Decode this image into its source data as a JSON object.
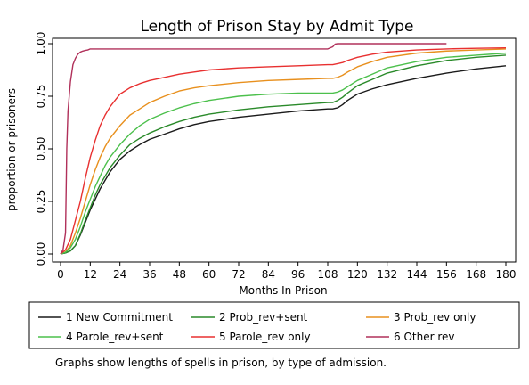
{
  "chart_data": {
    "type": "line",
    "title": "Length of Prison Stay by Admit Type",
    "xlabel": "Months In Prison",
    "ylabel": "proportion or prisoners",
    "xlim": [
      0,
      180
    ],
    "ylim": [
      0,
      1
    ],
    "xticks": [
      0,
      12,
      24,
      36,
      48,
      60,
      72,
      84,
      96,
      108,
      120,
      132,
      144,
      156,
      168,
      180
    ],
    "yticks": [
      "0.00",
      "0.25",
      "0.50",
      "0.75",
      "1.00"
    ],
    "grid": false,
    "legend_position": "bottom",
    "note": "Graphs show lengths of spells in prison, by type of admission.",
    "series": [
      {
        "name": "1 New Commitment",
        "color": "#1a1a1a",
        "x": [
          0,
          2,
          4,
          6,
          8,
          10,
          12,
          14,
          16,
          18,
          20,
          24,
          28,
          32,
          36,
          42,
          48,
          54,
          60,
          72,
          84,
          96,
          108,
          110,
          112,
          114,
          116,
          120,
          126,
          132,
          144,
          156,
          168,
          180
        ],
        "y": [
          0,
          0.005,
          0.015,
          0.04,
          0.09,
          0.15,
          0.21,
          0.26,
          0.31,
          0.35,
          0.39,
          0.45,
          0.49,
          0.52,
          0.545,
          0.57,
          0.595,
          0.615,
          0.63,
          0.65,
          0.665,
          0.68,
          0.69,
          0.69,
          0.695,
          0.71,
          0.73,
          0.76,
          0.785,
          0.805,
          0.835,
          0.86,
          0.88,
          0.895
        ]
      },
      {
        "name": "2 Prob_rev+sent",
        "color": "#2a8a2a",
        "x": [
          0,
          2,
          4,
          6,
          8,
          10,
          12,
          14,
          16,
          18,
          20,
          24,
          28,
          32,
          36,
          42,
          48,
          54,
          60,
          72,
          84,
          96,
          108,
          110,
          112,
          114,
          116,
          120,
          126,
          132,
          144,
          156,
          168,
          180
        ],
        "y": [
          0,
          0.005,
          0.015,
          0.04,
          0.095,
          0.16,
          0.22,
          0.28,
          0.33,
          0.37,
          0.41,
          0.47,
          0.52,
          0.55,
          0.575,
          0.605,
          0.63,
          0.65,
          0.665,
          0.685,
          0.7,
          0.71,
          0.72,
          0.72,
          0.73,
          0.745,
          0.765,
          0.8,
          0.83,
          0.86,
          0.895,
          0.92,
          0.935,
          0.945
        ]
      },
      {
        "name": "3 Prob_rev only",
        "color": "#e8901e",
        "x": [
          0,
          2,
          4,
          6,
          8,
          10,
          12,
          14,
          16,
          18,
          20,
          24,
          28,
          32,
          36,
          42,
          48,
          54,
          60,
          72,
          84,
          96,
          108,
          110,
          112,
          114,
          116,
          120,
          126,
          132,
          144,
          156,
          168,
          180
        ],
        "y": [
          0,
          0.01,
          0.04,
          0.1,
          0.17,
          0.25,
          0.33,
          0.4,
          0.46,
          0.51,
          0.55,
          0.61,
          0.66,
          0.69,
          0.72,
          0.75,
          0.775,
          0.79,
          0.8,
          0.815,
          0.825,
          0.83,
          0.835,
          0.835,
          0.84,
          0.85,
          0.865,
          0.89,
          0.915,
          0.935,
          0.955,
          0.965,
          0.97,
          0.975
        ]
      },
      {
        "name": "4 Parole_rev+sent",
        "color": "#4cc04c",
        "x": [
          0,
          2,
          4,
          6,
          8,
          10,
          12,
          14,
          16,
          18,
          20,
          24,
          28,
          32,
          36,
          42,
          48,
          54,
          60,
          72,
          84,
          96,
          108,
          110,
          112,
          114,
          116,
          120,
          126,
          132,
          144,
          156,
          168,
          180
        ],
        "y": [
          0,
          0.008,
          0.03,
          0.07,
          0.13,
          0.2,
          0.26,
          0.32,
          0.37,
          0.42,
          0.46,
          0.52,
          0.57,
          0.61,
          0.64,
          0.67,
          0.695,
          0.715,
          0.73,
          0.75,
          0.76,
          0.765,
          0.765,
          0.765,
          0.77,
          0.78,
          0.795,
          0.825,
          0.855,
          0.885,
          0.915,
          0.935,
          0.945,
          0.955
        ]
      },
      {
        "name": "5 Parole_rev only",
        "color": "#e83030",
        "x": [
          0,
          2,
          4,
          6,
          8,
          10,
          12,
          14,
          16,
          18,
          20,
          24,
          28,
          32,
          36,
          42,
          48,
          54,
          60,
          72,
          84,
          96,
          108,
          110,
          112,
          114,
          116,
          120,
          126,
          132,
          144,
          156,
          168,
          180
        ],
        "y": [
          0,
          0.02,
          0.07,
          0.16,
          0.25,
          0.36,
          0.46,
          0.54,
          0.61,
          0.66,
          0.7,
          0.76,
          0.79,
          0.81,
          0.825,
          0.84,
          0.855,
          0.865,
          0.875,
          0.885,
          0.89,
          0.895,
          0.9,
          0.9,
          0.905,
          0.91,
          0.92,
          0.935,
          0.95,
          0.96,
          0.97,
          0.975,
          0.978,
          0.98
        ]
      },
      {
        "name": "6 Other rev",
        "color": "#b0305a",
        "x": [
          0,
          1,
          2,
          2.5,
          3,
          4,
          5,
          6,
          7,
          8,
          9,
          10,
          11,
          12,
          24,
          48,
          72,
          96,
          108,
          110,
          111,
          112,
          120,
          132,
          144,
          156
        ],
        "y": [
          0,
          0.02,
          0.1,
          0.5,
          0.68,
          0.82,
          0.9,
          0.93,
          0.95,
          0.96,
          0.965,
          0.968,
          0.97,
          0.975,
          0.975,
          0.975,
          0.975,
          0.975,
          0.975,
          0.985,
          0.998,
          1.0,
          1.0,
          1.0,
          1.0,
          1.0
        ]
      }
    ]
  }
}
